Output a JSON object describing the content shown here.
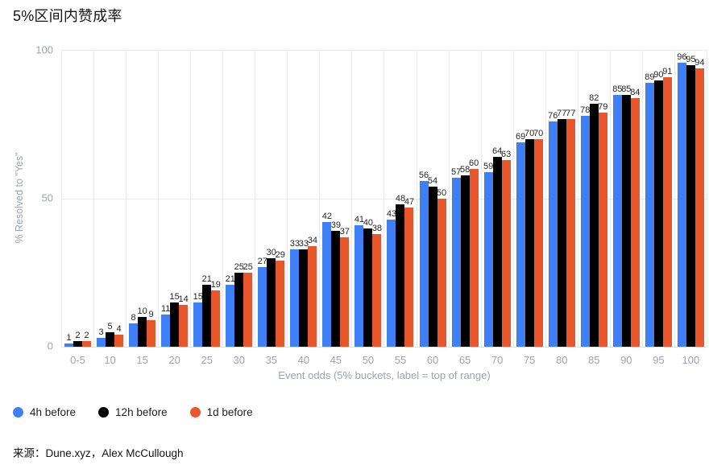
{
  "title": "5%区间内赞成率",
  "footer": "来源：Dune.xyz，Alex McCullough",
  "chart_data": {
    "type": "bar",
    "title": "5%区间内赞成率",
    "xlabel": "Event odds (5% buckets, label = top of range)",
    "ylabel": "% Resolved to \"Yes\"",
    "ylim": [
      0,
      100
    ],
    "ytick_values": [
      0,
      50,
      100
    ],
    "grid": "horizontal lines at 0/50/100, vertical separators between category groups",
    "legend_position": "bottom-left",
    "bar_value_labels": true,
    "categories": [
      "0-5",
      "10",
      "15",
      "20",
      "25",
      "30",
      "35",
      "40",
      "45",
      "50",
      "55",
      "60",
      "65",
      "70",
      "75",
      "80",
      "85",
      "90",
      "95",
      "100"
    ],
    "series": [
      {
        "name": "4h before",
        "color": "#3E80F4",
        "values": [
          1,
          3,
          8,
          11,
          15,
          21,
          27,
          33,
          42,
          41,
          43,
          56,
          57,
          59,
          69,
          76,
          78,
          85,
          89,
          96
        ]
      },
      {
        "name": "12h before",
        "color": "#000000",
        "values": [
          2,
          5,
          10,
          15,
          21,
          25,
          30,
          33,
          39,
          40,
          48,
          54,
          58,
          64,
          70,
          77,
          82,
          85,
          90,
          95
        ]
      },
      {
        "name": "1d before",
        "color": "#E8562E",
        "values": [
          2,
          4,
          9,
          14,
          19,
          25,
          29,
          34,
          37,
          38,
          47,
          50,
          60,
          63,
          70,
          77,
          79,
          84,
          91,
          94
        ]
      }
    ]
  }
}
